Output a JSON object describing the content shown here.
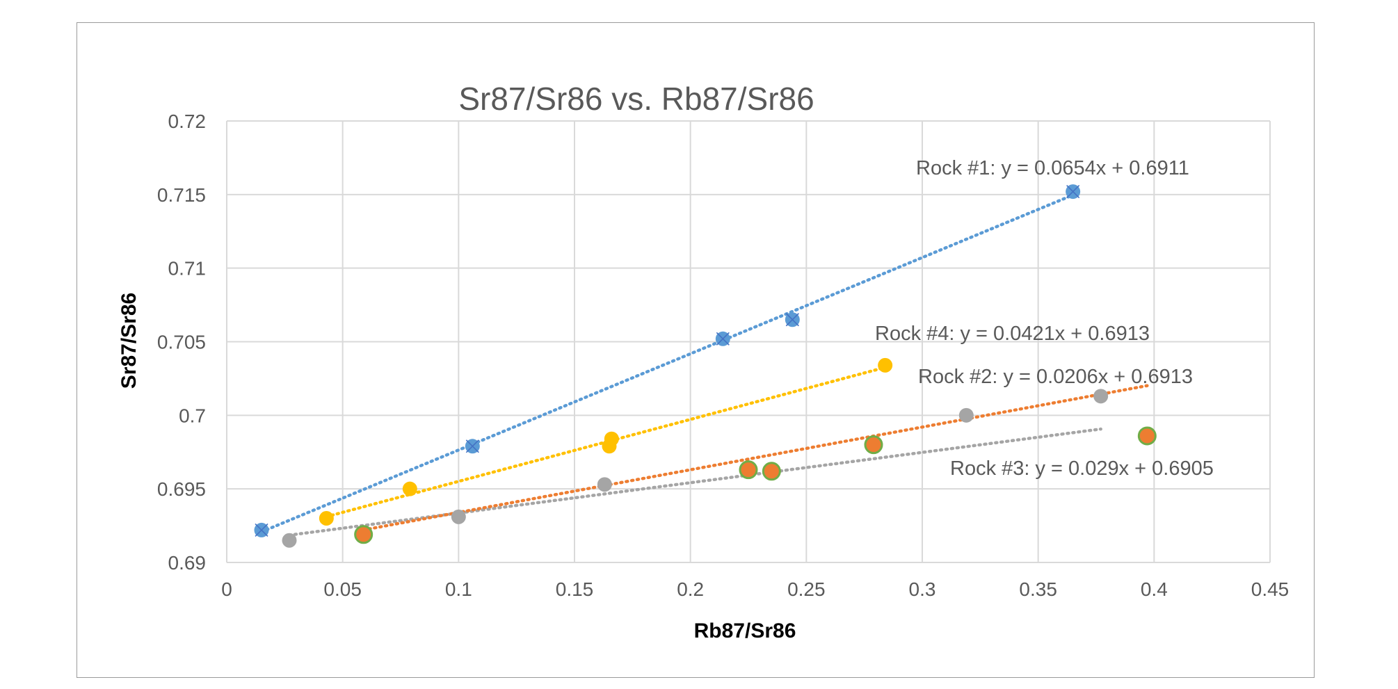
{
  "chart_data": {
    "type": "scatter",
    "title": "Sr87/Sr86 vs. Rb87/Sr86",
    "xlabel": "Rb87/Sr86",
    "ylabel": "Sr87/Sr86",
    "xlim": [
      0,
      0.45
    ],
    "ylim": [
      0.69,
      0.72
    ],
    "x_ticks": [
      "0",
      "0.05",
      "0.1",
      "0.15",
      "0.2",
      "0.25",
      "0.3",
      "0.35",
      "0.4",
      "0.45"
    ],
    "y_ticks": [
      "0.69",
      "0.695",
      "0.7",
      "0.705",
      "0.71",
      "0.715",
      "0.72"
    ],
    "grid": true,
    "series": [
      {
        "key": "rock1",
        "color": "#5b9bd5",
        "marker": "circle-x",
        "points": [
          [
            0.015,
            0.6922
          ],
          [
            0.106,
            0.6979
          ],
          [
            0.214,
            0.7052
          ],
          [
            0.244,
            0.7065
          ],
          [
            0.365,
            0.7152
          ]
        ],
        "trendline": {
          "slope": 0.0654,
          "intercept": 0.6911,
          "x_range": [
            0.015,
            0.365
          ],
          "label": "Rock #1: y = 0.0654x + 0.6911"
        }
      },
      {
        "key": "rock2",
        "color": "#a5a5a5",
        "marker": "circle",
        "points": [
          [
            0.027,
            0.6915
          ],
          [
            0.1,
            0.6931
          ],
          [
            0.163,
            0.6953
          ],
          [
            0.319,
            0.7
          ],
          [
            0.377,
            0.7013
          ]
        ],
        "trendline": {
          "slope": 0.0206,
          "intercept": 0.6913,
          "x_range": [
            0.027,
            0.377
          ],
          "label": "Rock #2: y = 0.0206x + 0.6913"
        }
      },
      {
        "key": "rock3",
        "color": "#ed7d31",
        "edge": "#70ad47",
        "marker": "circle-ring",
        "points": [
          [
            0.059,
            0.6919
          ],
          [
            0.225,
            0.6963
          ],
          [
            0.235,
            0.6962
          ],
          [
            0.279,
            0.698
          ],
          [
            0.397,
            0.6986
          ]
        ],
        "trendline": {
          "slope": 0.029,
          "intercept": 0.6905,
          "x_range": [
            0.059,
            0.397
          ],
          "label": "Rock #3: y = 0.029x + 0.6905"
        }
      },
      {
        "key": "rock4",
        "color": "#ffc000",
        "marker": "circle",
        "points": [
          [
            0.043,
            0.693
          ],
          [
            0.079,
            0.695
          ],
          [
            0.165,
            0.6979
          ],
          [
            0.166,
            0.6984
          ],
          [
            0.284,
            0.7034
          ]
        ],
        "trendline": {
          "slope": 0.0421,
          "intercept": 0.6913,
          "x_range": [
            0.043,
            0.284
          ],
          "label": "Rock #4: y = 0.0421x + 0.6913"
        }
      }
    ]
  }
}
